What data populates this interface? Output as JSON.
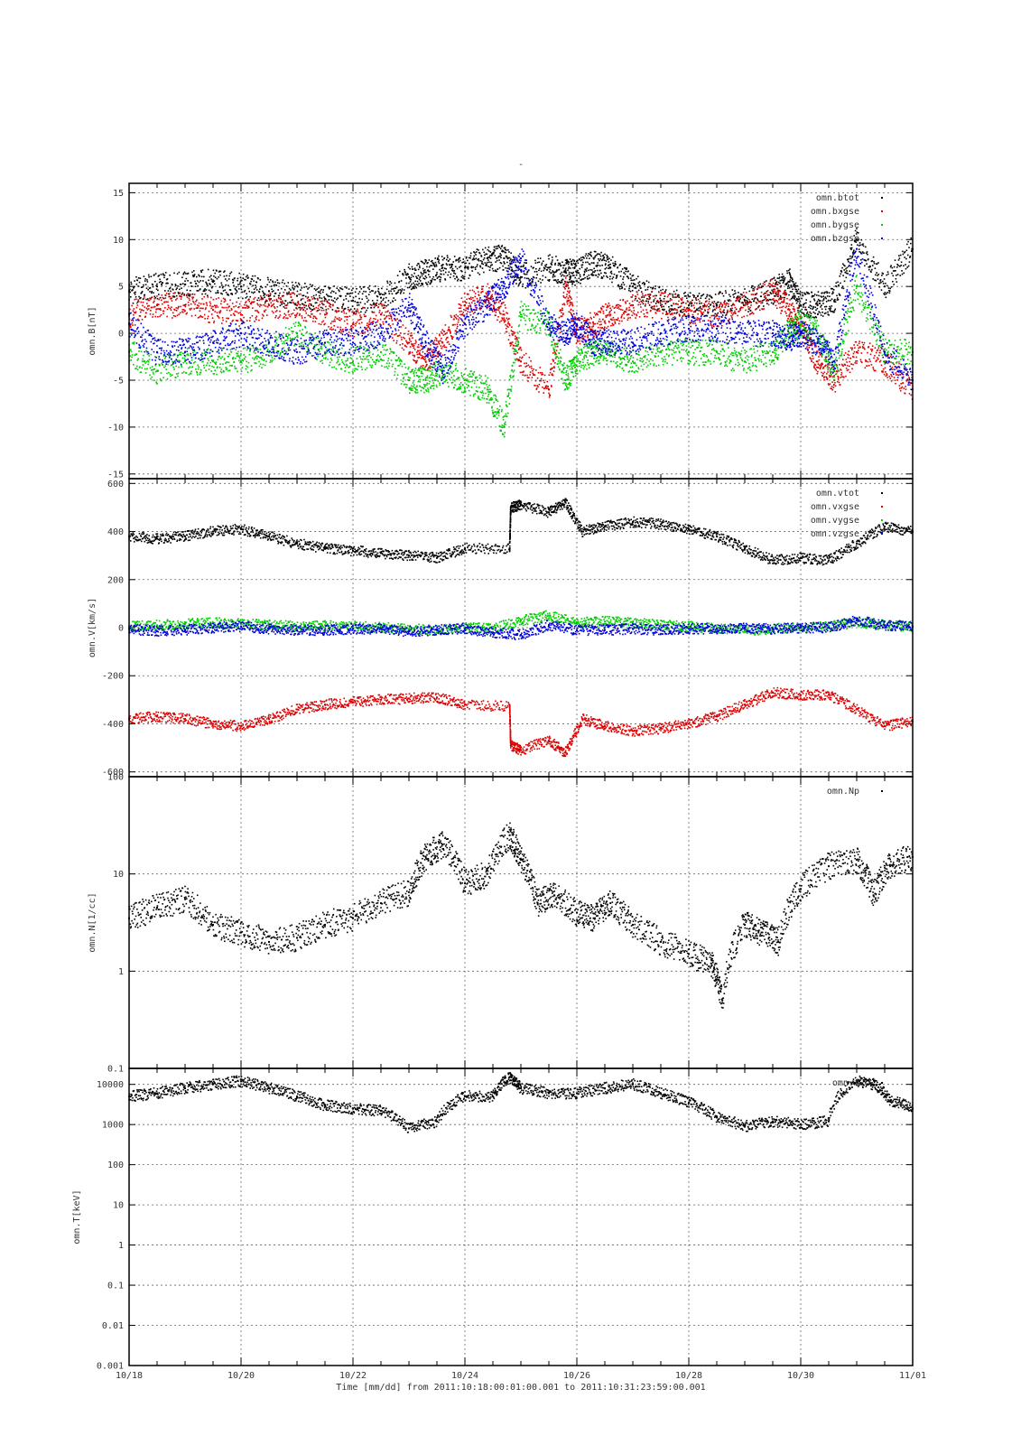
{
  "page_title": "-",
  "xlabel": "Time [mm/dd]  from 2011:10:18:00:01:00.001  to  2011:10:31:23:59:00.001",
  "x_ticks": [
    "10/18",
    "10/20",
    "10/22",
    "10/24",
    "10/26",
    "10/28",
    "10/30",
    "11/01"
  ],
  "colors": {
    "black": "#000000",
    "red": "#dd0000",
    "green": "#00cc00",
    "blue": "#0000dd"
  },
  "chart_data": [
    {
      "type": "scatter",
      "ylabel": "omn.B[nT]",
      "ylim": [
        -15.5,
        16
      ],
      "yticks": [
        -15,
        -10,
        -5,
        0,
        5,
        10,
        15
      ],
      "ytick_labels": [
        "-15",
        "-10",
        "-5",
        "0",
        "5",
        "10",
        "15"
      ],
      "xlim": [
        0,
        14
      ],
      "grid": true,
      "legend": "top-right",
      "series": [
        {
          "name": "omn.btot",
          "color": "#000000",
          "x": [
            0,
            0.5,
            1,
            1.5,
            2,
            2.5,
            3,
            3.5,
            4,
            4.5,
            5,
            5.3,
            5.6,
            6,
            6.4,
            6.7,
            7,
            7.5,
            7.8,
            8,
            8.3,
            8.6,
            9,
            9.5,
            10,
            10.5,
            11,
            11.5,
            11.8,
            12,
            12.3,
            12.6,
            13,
            13.5,
            14
          ],
          "values": [
            4.5,
            5,
            5.2,
            5.5,
            5,
            4.5,
            4,
            3.7,
            3.5,
            3.8,
            6,
            6.5,
            7,
            7,
            8,
            8,
            6,
            7,
            6.5,
            6.5,
            7.5,
            7,
            5,
            3.5,
            3,
            3,
            3.5,
            4.5,
            5.5,
            3,
            3,
            3.5,
            10,
            5,
            9
          ]
        },
        {
          "name": "omn.bxgse",
          "color": "#dd0000",
          "x": [
            0,
            0.5,
            1,
            1.5,
            2,
            2.5,
            3,
            3.5,
            4,
            4.5,
            5,
            5.3,
            5.6,
            6,
            6.4,
            6.7,
            7,
            7.5,
            7.8,
            8,
            8.3,
            8.6,
            9,
            9.5,
            10,
            10.5,
            11,
            11.5,
            11.8,
            12,
            12.3,
            12.6,
            13,
            13.5,
            14
          ],
          "values": [
            2,
            3,
            3,
            2.5,
            2,
            3,
            3,
            2,
            1,
            2,
            -1,
            -3,
            -1,
            3,
            4,
            2,
            -3,
            -6,
            5,
            0,
            1,
            2,
            3,
            3,
            2.5,
            2,
            3,
            4.5,
            2.5,
            1,
            -3,
            -5,
            -2,
            -3,
            -6
          ]
        },
        {
          "name": "omn.bygse",
          "color": "#00cc00",
          "x": [
            0,
            0.5,
            1,
            1.5,
            2,
            2.5,
            3,
            3.5,
            4,
            4.5,
            5,
            5.3,
            5.6,
            6,
            6.4,
            6.7,
            7,
            7.5,
            7.8,
            8,
            8.3,
            8.6,
            9,
            9.5,
            10,
            10.5,
            11,
            11.5,
            11.8,
            12,
            12.3,
            12.6,
            13,
            13.5,
            14
          ],
          "values": [
            -2,
            -4,
            -3,
            -3,
            -3,
            -2,
            0,
            -2,
            -3,
            -2,
            -5,
            -5,
            -4,
            -5,
            -6,
            -10,
            2,
            1,
            -5,
            -3,
            -2,
            -2,
            -3,
            -2,
            -2,
            -2,
            -3,
            -2,
            0,
            1,
            0,
            -4,
            5,
            -2,
            -2
          ]
        },
        {
          "name": "omn.bzgse",
          "color": "#0000dd",
          "x": [
            0,
            0.5,
            1,
            1.5,
            2,
            2.5,
            3,
            3.5,
            4,
            4.5,
            5,
            5.3,
            5.6,
            6,
            6.4,
            6.7,
            7,
            7.5,
            7.8,
            8,
            8.3,
            8.6,
            9,
            9.5,
            10,
            10.5,
            11,
            11.5,
            11.8,
            12,
            12.3,
            12.6,
            13,
            13.5,
            14
          ],
          "values": [
            1,
            -2,
            -2,
            -1,
            0,
            -1,
            -2,
            -1,
            -1,
            0,
            3,
            -1,
            -4,
            1,
            3,
            5,
            8,
            1,
            0,
            1,
            -1,
            -1,
            -1,
            0,
            0.5,
            0.5,
            0,
            0,
            -0.5,
            0,
            -1,
            -3,
            9,
            -2,
            -5
          ]
        }
      ]
    },
    {
      "type": "scatter",
      "ylabel": "omn.V[km/s]",
      "ylim": [
        -620,
        620
      ],
      "yticks": [
        -600,
        -400,
        -200,
        0,
        200,
        400,
        600
      ],
      "ytick_labels": [
        "-600",
        "-400",
        "-200",
        "0",
        "200",
        "400",
        "600"
      ],
      "xlim": [
        0,
        14
      ],
      "grid": true,
      "legend": "top-right",
      "series": [
        {
          "name": "omn.vtot",
          "color": "#000000",
          "x": [
            0,
            0.5,
            1,
            1.5,
            2,
            2.5,
            3,
            3.5,
            4,
            4.5,
            5,
            5.5,
            6,
            6.8,
            6.82,
            7,
            7.5,
            7.8,
            8.1,
            8.5,
            9,
            9.5,
            10,
            10.5,
            11,
            11.5,
            12,
            12.5,
            13,
            13.5,
            14
          ],
          "values": [
            380,
            370,
            380,
            400,
            410,
            380,
            350,
            330,
            320,
            310,
            300,
            290,
            330,
            330,
            500,
            510,
            480,
            520,
            400,
            420,
            440,
            430,
            410,
            380,
            330,
            280,
            290,
            280,
            350,
            420,
            400
          ]
        },
        {
          "name": "omn.vxgse",
          "color": "#dd0000",
          "x": [
            0,
            0.5,
            1,
            1.5,
            2,
            2.5,
            3,
            3.5,
            4,
            4.5,
            5,
            5.5,
            6,
            6.8,
            6.82,
            7,
            7.5,
            7.8,
            8.1,
            8.5,
            9,
            9.5,
            10,
            10.5,
            11,
            11.5,
            12,
            12.5,
            13,
            13.5,
            14
          ],
          "values": [
            -380,
            -370,
            -380,
            -400,
            -410,
            -380,
            -340,
            -320,
            -310,
            -300,
            -295,
            -290,
            -320,
            -330,
            -490,
            -510,
            -470,
            -520,
            -380,
            -410,
            -430,
            -420,
            -400,
            -370,
            -320,
            -270,
            -280,
            -280,
            -340,
            -410,
            -390
          ]
        },
        {
          "name": "omn.vygse",
          "color": "#00cc00",
          "x": [
            0,
            0.5,
            1,
            1.5,
            2,
            2.5,
            3,
            3.5,
            4,
            4.5,
            5,
            5.5,
            6,
            6.5,
            7,
            7.5,
            8,
            8.5,
            9,
            9.5,
            10,
            10.5,
            11,
            11.5,
            12,
            12.5,
            13,
            13.5,
            14
          ],
          "values": [
            5,
            10,
            15,
            20,
            15,
            10,
            5,
            10,
            5,
            0,
            -5,
            -10,
            0,
            -5,
            30,
            50,
            20,
            25,
            20,
            10,
            5,
            -5,
            -10,
            -5,
            0,
            5,
            20,
            10,
            5
          ]
        },
        {
          "name": "omn.vzgse",
          "color": "#0000dd",
          "x": [
            0,
            0.5,
            1,
            1.5,
            2,
            2.5,
            3,
            3.5,
            4,
            4.5,
            5,
            5.5,
            6,
            6.5,
            7,
            7.5,
            8,
            8.5,
            9,
            9.5,
            10,
            10.5,
            11,
            11.5,
            12,
            12.5,
            13,
            13.5,
            14
          ],
          "values": [
            -5,
            -15,
            -10,
            0,
            5,
            -5,
            -10,
            -10,
            -5,
            -5,
            -15,
            -10,
            -5,
            -20,
            -30,
            10,
            -10,
            -10,
            -5,
            -10,
            -5,
            -5,
            0,
            -5,
            0,
            0,
            30,
            10,
            5
          ]
        }
      ]
    },
    {
      "type": "scatter",
      "ylabel": "omn.N[1/cc]",
      "yscale": "log",
      "ylim": [
        0.1,
        100
      ],
      "yticks": [
        0.1,
        1,
        10,
        100
      ],
      "ytick_labels": [
        "0.1",
        "1",
        "10",
        "100"
      ],
      "xlim": [
        0,
        14
      ],
      "grid": true,
      "legend": "top-right",
      "series": [
        {
          "name": "omn.Np",
          "color": "#000000",
          "x": [
            0,
            0.5,
            1,
            1.5,
            2,
            2.5,
            3,
            3.5,
            4,
            4.5,
            5,
            5.3,
            5.6,
            6,
            6.4,
            6.8,
            7,
            7.3,
            7.6,
            8,
            8.3,
            8.6,
            9,
            9.5,
            10,
            10.4,
            10.6,
            11,
            11.3,
            11.6,
            12,
            12.5,
            13,
            13.3,
            13.6,
            14
          ],
          "values": [
            3.5,
            4.5,
            5.5,
            3,
            2.5,
            2,
            2.2,
            3,
            3.5,
            5,
            6.5,
            15,
            20,
            8,
            10,
            25,
            14,
            5,
            6,
            4,
            3.5,
            5,
            3,
            2,
            1.5,
            1.2,
            0.5,
            3,
            2.5,
            2,
            7,
            12,
            14,
            6,
            12,
            15
          ]
        }
      ]
    },
    {
      "type": "scatter",
      "ylabel": "omn.T[keV]",
      "yscale": "log",
      "ylim": [
        0.001,
        25000
      ],
      "yticks": [
        0.001,
        0.01,
        0.1,
        1,
        10,
        100,
        1000,
        10000
      ],
      "ytick_labels": [
        "0.001",
        "0.01",
        "0.1",
        "1",
        "10",
        "100",
        "1000",
        "10000"
      ],
      "xlim": [
        0,
        14
      ],
      "grid": true,
      "legend": "top-right",
      "series": [
        {
          "name": "omn.t",
          "color": "#000000",
          "x": [
            0,
            0.5,
            1,
            1.5,
            2,
            2.5,
            3,
            3.5,
            4,
            4.5,
            5,
            5.5,
            6,
            6.5,
            6.8,
            7,
            7.5,
            8,
            8.5,
            9,
            9.5,
            10,
            10.5,
            11,
            11.5,
            12,
            12.5,
            13,
            13.3,
            13.6,
            14
          ],
          "values": [
            5000,
            6000,
            8000,
            10000,
            12000,
            8000,
            5000,
            3000,
            2500,
            2200,
            800,
            1200,
            5000,
            5000,
            15000,
            8000,
            6000,
            6000,
            8000,
            10000,
            6000,
            3500,
            1500,
            900,
            1200,
            1000,
            1200,
            12000,
            10000,
            4000,
            2500
          ]
        }
      ]
    }
  ]
}
